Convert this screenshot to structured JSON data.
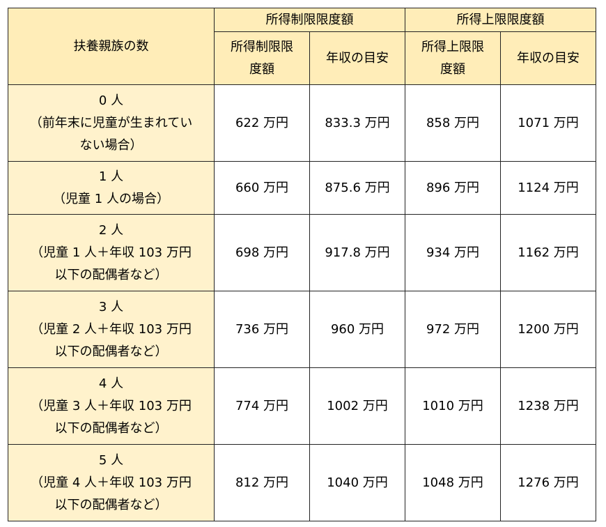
{
  "header": {
    "row_label": "扶養親族の数",
    "group_1": "所得制限限度額",
    "group_2": "所得上限限度額",
    "sub_1_line1": "所得制限限",
    "sub_1_line2": "度額",
    "sub_2": "年収の目安",
    "sub_3_line1": "所得上限限",
    "sub_3_line2": "度額",
    "sub_4": "年収の目安"
  },
  "rows": [
    {
      "label_lines": [
        "0 人",
        "（前年末に児童が生まれてい",
        "ない場合）"
      ],
      "values": [
        "622 万円",
        "833.3 万円",
        "858 万円",
        "1071 万円"
      ]
    },
    {
      "label_lines": [
        "1 人",
        "（児童 1 人の場合）"
      ],
      "values": [
        "660 万円",
        "875.6 万円",
        "896 万円",
        "1124 万円"
      ]
    },
    {
      "label_lines": [
        "2 人",
        "（児童 1 人＋年収 103 万円",
        "以下の配偶者など）"
      ],
      "values": [
        "698 万円",
        "917.8 万円",
        "934 万円",
        "1162 万円"
      ]
    },
    {
      "label_lines": [
        "3 人",
        "（児童 2 人＋年収 103 万円",
        "以下の配偶者など）"
      ],
      "values": [
        "736 万円",
        "960 万円",
        "972 万円",
        "1200 万円"
      ]
    },
    {
      "label_lines": [
        "4 人",
        "（児童 3 人＋年収 103 万円",
        "以下の配偶者など）"
      ],
      "values": [
        "774 万円",
        "1002 万円",
        "1010 万円",
        "1238 万円"
      ]
    },
    {
      "label_lines": [
        "5 人",
        "（児童 4 人＋年収 103 万円",
        "以下の配偶者など）"
      ],
      "values": [
        "812 万円",
        "1040 万円",
        "1048 万円",
        "1276 万円"
      ]
    }
  ]
}
